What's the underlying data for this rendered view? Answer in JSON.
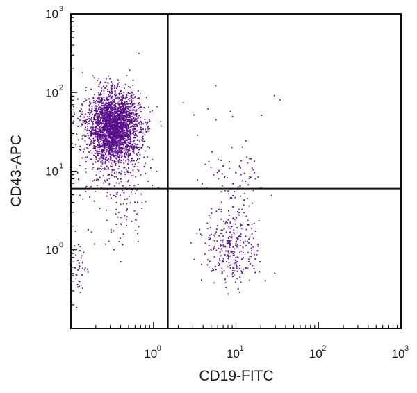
{
  "chart_data": {
    "type": "scatter",
    "title": "",
    "xlabel": "CD19-FITC",
    "ylabel": "CD43-APC",
    "x_scale": "log",
    "y_scale": "log",
    "xlim": [
      0.1,
      1000
    ],
    "ylim": [
      0.1,
      1000
    ],
    "x_ticks": [
      {
        "base": "10",
        "exp": "0",
        "value": 1
      },
      {
        "base": "10",
        "exp": "1",
        "value": 10
      },
      {
        "base": "10",
        "exp": "2",
        "value": 100
      },
      {
        "base": "10",
        "exp": "3",
        "value": 1000
      }
    ],
    "y_ticks": [
      {
        "base": "10",
        "exp": "0",
        "value": 1
      },
      {
        "base": "10",
        "exp": "1",
        "value": 10
      },
      {
        "base": "10",
        "exp": "2",
        "value": 100
      },
      {
        "base": "10",
        "exp": "3",
        "value": 1000
      }
    ],
    "quadrant_gates": {
      "x": 1.5,
      "y": 6
    },
    "grid": false,
    "point_color": "#5a0f8c",
    "populations": [
      {
        "x_center": 0.33,
        "y_center": 36,
        "x_spread_decades": 0.16,
        "y_spread_decades": 0.22,
        "count": 2600
      },
      {
        "x_center": 0.35,
        "y_center": 10,
        "x_spread_decades": 0.2,
        "y_spread_decades": 0.3,
        "count": 180
      },
      {
        "x_center": 0.13,
        "y_center": 0.6,
        "x_spread_decades": 0.05,
        "y_spread_decades": 0.2,
        "count": 40
      },
      {
        "x_center": 0.4,
        "y_center": 2.5,
        "x_spread_decades": 0.15,
        "y_spread_decades": 0.25,
        "count": 35
      },
      {
        "x_center": 9,
        "y_center": 1.1,
        "x_spread_decades": 0.17,
        "y_spread_decades": 0.25,
        "count": 300
      },
      {
        "x_center": 10,
        "y_center": 8,
        "x_spread_decades": 0.2,
        "y_spread_decades": 0.2,
        "count": 70
      },
      {
        "x_center": 3,
        "y_center": 30,
        "x_spread_decades": 0.5,
        "y_spread_decades": 0.4,
        "count": 14
      }
    ]
  }
}
